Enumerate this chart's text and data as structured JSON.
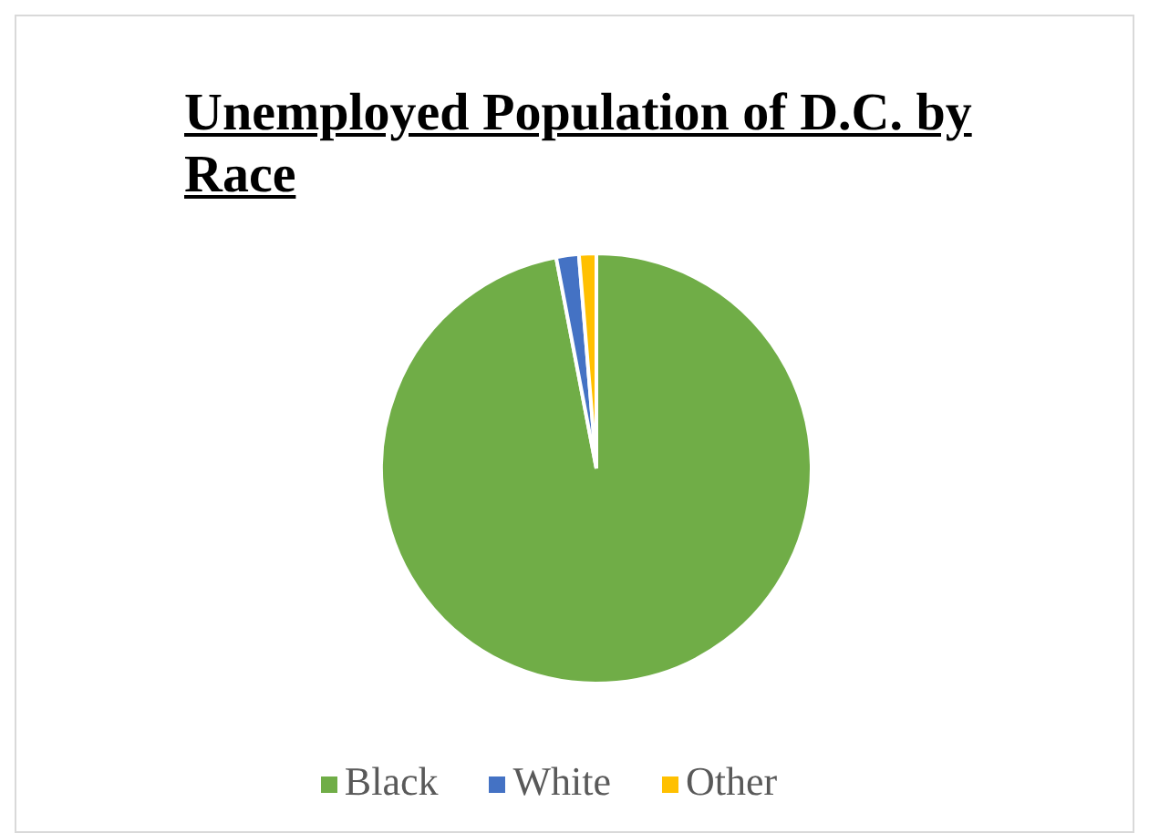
{
  "chart_data": {
    "type": "pie",
    "title": "Unemployed Population of D.C. by Race",
    "categories": [
      "Black",
      "White",
      "Other"
    ],
    "values": [
      97,
      1.7,
      1.3
    ],
    "colors": [
      "#70ad47",
      "#4472c4",
      "#ffc000"
    ],
    "legend": "bottom"
  }
}
